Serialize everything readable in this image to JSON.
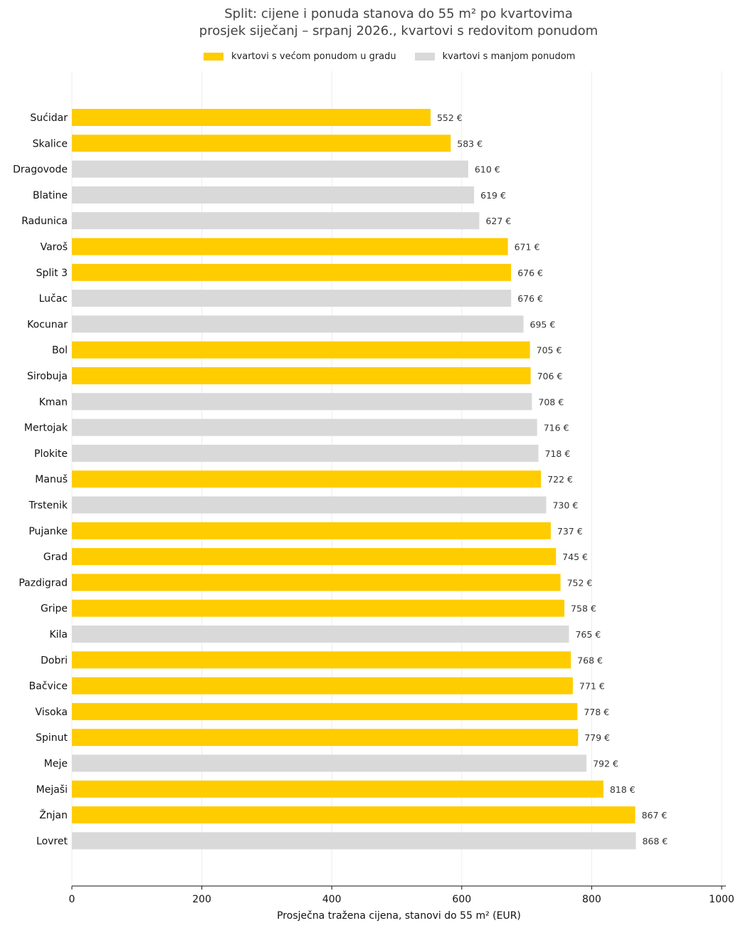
{
  "chart_data": {
    "type": "bar",
    "orientation": "horizontal",
    "title": "Split: cijene i ponuda stanova do 55 m² po kvartovima",
    "subtitle": "prosjek siječanj – srpanj 2026., kvartovi s redovitom ponudom",
    "xlabel": "Prosječna tražena cijena, stanovi do 55 m² (EUR)",
    "xlim": [
      0,
      1000
    ],
    "xticks": [
      0,
      200,
      400,
      600,
      800,
      1000
    ],
    "grid": "vertical",
    "legend_position": "top-center",
    "legend": [
      {
        "label": "kvartovi s većom ponudom u gradu",
        "color": "#ffcc00"
      },
      {
        "label": "kvartovi s manjom ponudom",
        "color": "#d9d9d9"
      }
    ],
    "value_suffix": " €",
    "categories": [
      "Sućidar",
      "Skalice",
      "Dragovode",
      "Blatine",
      "Radunica",
      "Varoš",
      "Split 3",
      "Lučac",
      "Kocunar",
      "Bol",
      "Sirobuja",
      "Kman",
      "Mertojak",
      "Plokite",
      "Manuš",
      "Trstenik",
      "Pujanke",
      "Grad",
      "Pazdigrad",
      "Gripe",
      "Kila",
      "Dobri",
      "Bačvice",
      "Visoka",
      "Spinut",
      "Meje",
      "Mejaši",
      "Žnjan",
      "Lovret"
    ],
    "values": [
      552,
      583,
      610,
      619,
      627,
      671,
      676,
      676,
      695,
      705,
      706,
      708,
      716,
      718,
      722,
      730,
      737,
      745,
      752,
      758,
      765,
      768,
      771,
      778,
      779,
      792,
      818,
      867,
      868
    ],
    "groups": [
      "high",
      "high",
      "low",
      "low",
      "low",
      "high",
      "high",
      "low",
      "low",
      "high",
      "high",
      "low",
      "low",
      "low",
      "high",
      "low",
      "high",
      "high",
      "high",
      "high",
      "low",
      "high",
      "high",
      "high",
      "high",
      "low",
      "high",
      "high",
      "low"
    ]
  }
}
